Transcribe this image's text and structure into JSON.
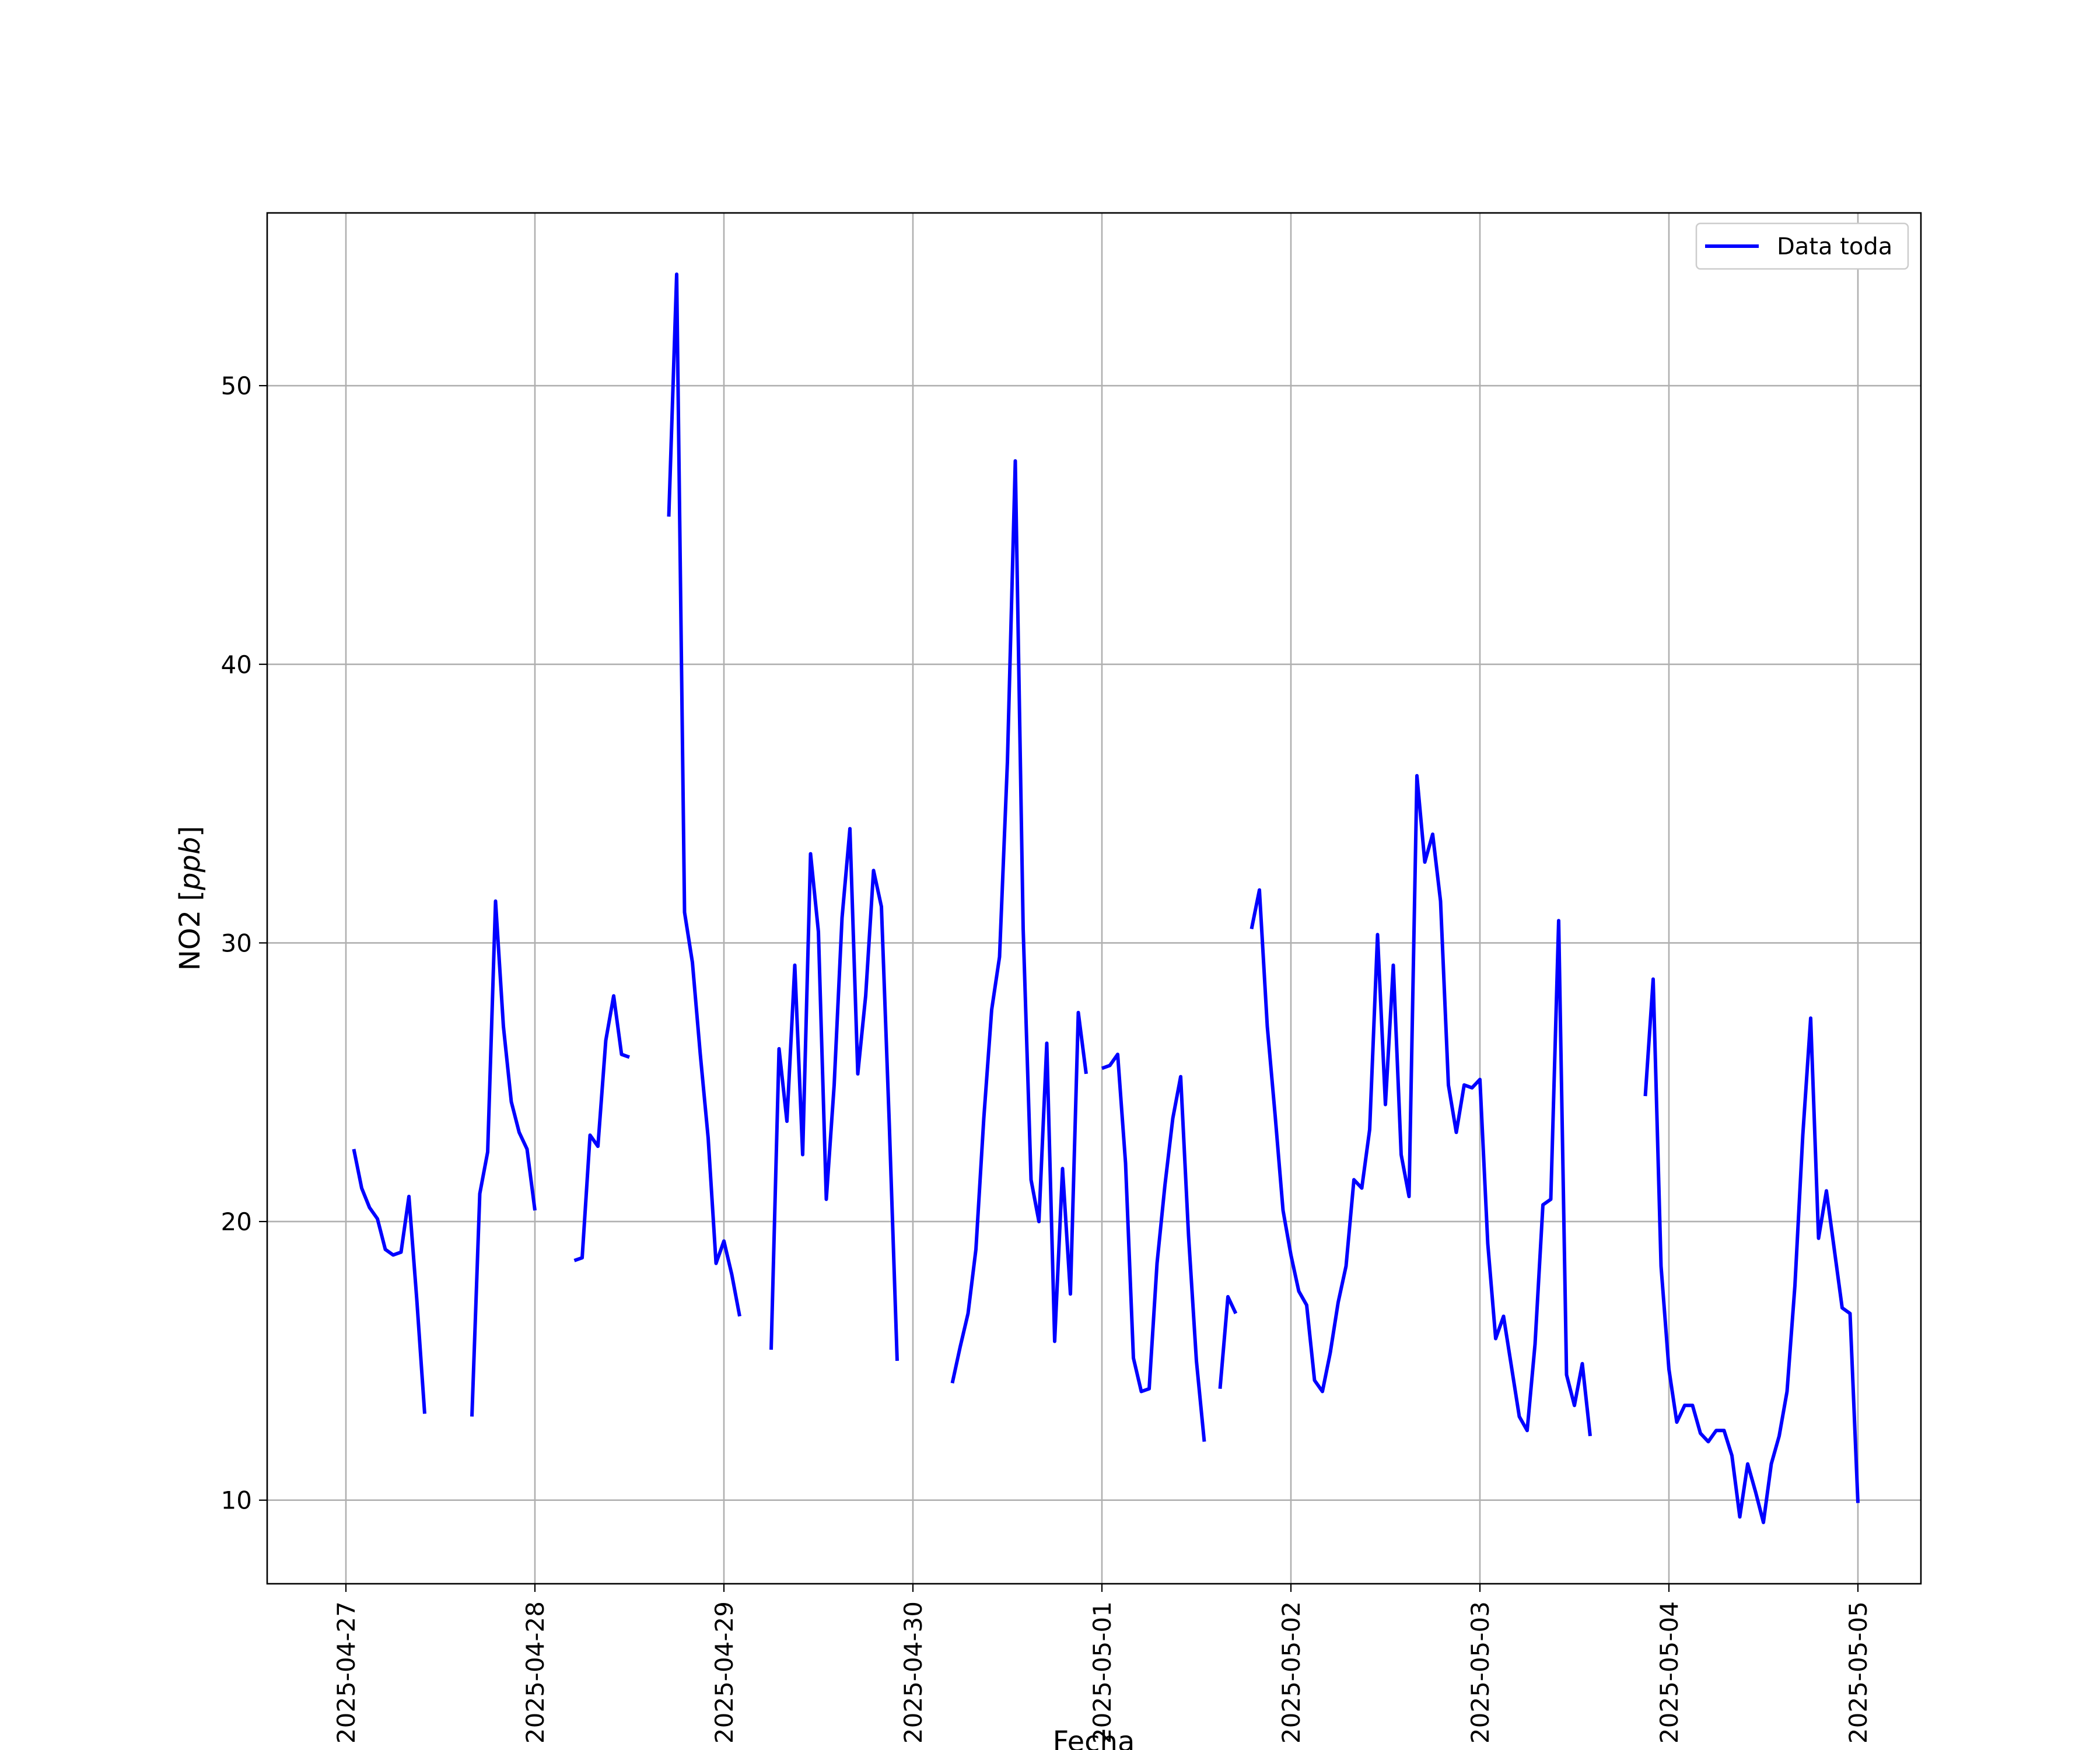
{
  "chart_data": {
    "type": "line",
    "title": "",
    "xlabel": "Fecha",
    "ylabel": "NO2 [ppb]",
    "ylabel_main": "NO2 [",
    "ylabel_unit": "ppb",
    "ylabel_close": "]",
    "x_ticks": [
      "2025-04-27",
      "2025-04-28",
      "2025-04-29",
      "2025-04-30",
      "2025-05-01",
      "2025-05-02",
      "2025-05-03",
      "2025-05-04",
      "2025-05-05"
    ],
    "y_ticks": [
      10,
      20,
      30,
      40,
      50
    ],
    "xlim": [
      "2025-04-26T14:00",
      "2025-05-05T08:00"
    ],
    "ylim": [
      7.0,
      56.2
    ],
    "grid": true,
    "legend": {
      "position": "top-right",
      "entries": [
        "Data toda"
      ]
    },
    "series": [
      {
        "name": "Data toda",
        "color": "#0000ff",
        "segments": [
          [
            [
              "2025-04-27T01:00",
              22.6
            ],
            [
              "2025-04-27T02:00",
              21.2
            ],
            [
              "2025-04-27T03:00",
              20.5
            ],
            [
              "2025-04-27T04:00",
              20.1
            ],
            [
              "2025-04-27T05:00",
              19.0
            ],
            [
              "2025-04-27T06:00",
              18.8
            ],
            [
              "2025-04-27T07:00",
              18.9
            ],
            [
              "2025-04-27T08:00",
              20.9
            ],
            [
              "2025-04-27T09:00",
              17.2
            ],
            [
              "2025-04-27T10:00",
              13.1
            ]
          ],
          [
            [
              "2025-04-27T16:00",
              13.0
            ],
            [
              "2025-04-27T17:00",
              21.0
            ],
            [
              "2025-04-27T18:00",
              22.5
            ],
            [
              "2025-04-27T19:00",
              31.5
            ],
            [
              "2025-04-27T20:00",
              27.0
            ],
            [
              "2025-04-27T21:00",
              24.3
            ],
            [
              "2025-04-27T22:00",
              23.2
            ],
            [
              "2025-04-27T23:00",
              22.6
            ],
            [
              "2025-04-28T00:00",
              20.4
            ]
          ],
          [
            [
              "2025-04-28T05:00",
              18.6
            ],
            [
              "2025-04-28T06:00",
              18.7
            ],
            [
              "2025-04-28T07:00",
              23.1
            ],
            [
              "2025-04-28T08:00",
              22.7
            ],
            [
              "2025-04-28T09:00",
              26.5
            ],
            [
              "2025-04-28T10:00",
              28.1
            ],
            [
              "2025-04-28T11:00",
              26.0
            ],
            [
              "2025-04-28T12:00",
              25.9
            ]
          ],
          [
            [
              "2025-04-28T17:00",
              45.3
            ],
            [
              "2025-04-28T18:00",
              54.0
            ],
            [
              "2025-04-28T19:00",
              31.1
            ],
            [
              "2025-04-28T20:00",
              29.3
            ],
            [
              "2025-04-28T21:00",
              26.0
            ],
            [
              "2025-04-28T22:00",
              23.0
            ],
            [
              "2025-04-28T23:00",
              18.5
            ],
            [
              "2025-04-29T00:00",
              19.3
            ],
            [
              "2025-04-29T01:00",
              18.1
            ],
            [
              "2025-04-29T02:00",
              16.6
            ]
          ],
          [
            [
              "2025-04-29T06:00",
              15.4
            ],
            [
              "2025-04-29T07:00",
              26.2
            ],
            [
              "2025-04-29T08:00",
              23.6
            ],
            [
              "2025-04-29T09:00",
              29.2
            ],
            [
              "2025-04-29T10:00",
              22.4
            ],
            [
              "2025-04-29T11:00",
              33.2
            ],
            [
              "2025-04-29T12:00",
              30.4
            ],
            [
              "2025-04-29T13:00",
              20.8
            ],
            [
              "2025-04-29T14:00",
              24.9
            ],
            [
              "2025-04-29T15:00",
              30.9
            ],
            [
              "2025-04-29T16:00",
              34.1
            ],
            [
              "2025-04-29T17:00",
              25.3
            ],
            [
              "2025-04-29T18:00",
              28.1
            ],
            [
              "2025-04-29T19:00",
              32.6
            ],
            [
              "2025-04-29T20:00",
              31.3
            ],
            [
              "2025-04-29T21:00",
              23.5
            ],
            [
              "2025-04-29T22:00",
              15.0
            ]
          ],
          [
            [
              "2025-04-30T05:00",
              14.2
            ],
            [
              "2025-04-30T06:00",
              15.5
            ],
            [
              "2025-04-30T07:00",
              16.7
            ],
            [
              "2025-04-30T08:00",
              19.0
            ],
            [
              "2025-04-30T09:00",
              23.7
            ],
            [
              "2025-04-30T10:00",
              27.6
            ],
            [
              "2025-04-30T11:00",
              29.5
            ],
            [
              "2025-04-30T12:00",
              36.5
            ],
            [
              "2025-04-30T13:00",
              47.3
            ],
            [
              "2025-04-30T14:00",
              30.5
            ],
            [
              "2025-04-30T15:00",
              21.5
            ],
            [
              "2025-04-30T16:00",
              20.0
            ],
            [
              "2025-04-30T17:00",
              26.4
            ],
            [
              "2025-04-30T18:00",
              15.7
            ],
            [
              "2025-04-30T19:00",
              21.9
            ],
            [
              "2025-04-30T20:00",
              17.4
            ],
            [
              "2025-04-30T21:00",
              27.5
            ],
            [
              "2025-04-30T22:00",
              25.3
            ]
          ],
          [
            [
              "2025-05-01T00:00",
              25.5
            ],
            [
              "2025-05-01T01:00",
              25.6
            ],
            [
              "2025-05-01T02:00",
              26.0
            ],
            [
              "2025-05-01T03:00",
              22.1
            ],
            [
              "2025-05-01T04:00",
              15.1
            ],
            [
              "2025-05-01T05:00",
              13.9
            ],
            [
              "2025-05-01T06:00",
              14.0
            ],
            [
              "2025-05-01T07:00",
              18.5
            ],
            [
              "2025-05-01T08:00",
              21.3
            ],
            [
              "2025-05-01T09:00",
              23.7
            ],
            [
              "2025-05-01T10:00",
              25.2
            ],
            [
              "2025-05-01T11:00",
              19.5
            ],
            [
              "2025-05-01T12:00",
              15.0
            ],
            [
              "2025-05-01T13:00",
              12.1
            ]
          ],
          [
            [
              "2025-05-01T15:00",
              14.0
            ],
            [
              "2025-05-01T16:00",
              17.3
            ],
            [
              "2025-05-01T17:00",
              16.7
            ]
          ],
          [
            [
              "2025-05-01T19:00",
              30.5
            ],
            [
              "2025-05-01T20:00",
              31.9
            ],
            [
              "2025-05-01T21:00",
              27.0
            ],
            [
              "2025-05-01T22:00",
              23.8
            ],
            [
              "2025-05-01T23:00",
              20.4
            ],
            [
              "2025-05-02T00:00",
              18.8
            ],
            [
              "2025-05-02T01:00",
              17.5
            ],
            [
              "2025-05-02T02:00",
              17.0
            ],
            [
              "2025-05-02T03:00",
              14.3
            ],
            [
              "2025-05-02T04:00",
              13.9
            ],
            [
              "2025-05-02T05:00",
              15.3
            ],
            [
              "2025-05-02T06:00",
              17.1
            ],
            [
              "2025-05-02T07:00",
              18.4
            ],
            [
              "2025-05-02T08:00",
              21.5
            ],
            [
              "2025-05-02T09:00",
              21.2
            ],
            [
              "2025-05-02T10:00",
              23.3
            ],
            [
              "2025-05-02T11:00",
              30.3
            ],
            [
              "2025-05-02T12:00",
              24.2
            ],
            [
              "2025-05-02T13:00",
              29.2
            ],
            [
              "2025-05-02T14:00",
              22.4
            ],
            [
              "2025-05-02T15:00",
              20.9
            ],
            [
              "2025-05-02T16:00",
              36.0
            ],
            [
              "2025-05-02T17:00",
              32.9
            ],
            [
              "2025-05-02T18:00",
              33.9
            ],
            [
              "2025-05-02T19:00",
              31.5
            ],
            [
              "2025-05-02T20:00",
              24.9
            ],
            [
              "2025-05-02T21:00",
              23.2
            ],
            [
              "2025-05-02T22:00",
              24.9
            ],
            [
              "2025-05-02T23:00",
              24.8
            ],
            [
              "2025-05-03T00:00",
              25.1
            ],
            [
              "2025-05-03T01:00",
              19.2
            ],
            [
              "2025-05-03T02:00",
              15.8
            ],
            [
              "2025-05-03T03:00",
              16.6
            ],
            [
              "2025-05-03T04:00",
              14.8
            ],
            [
              "2025-05-03T05:00",
              13.0
            ],
            [
              "2025-05-03T06:00",
              12.5
            ],
            [
              "2025-05-03T07:00",
              15.6
            ],
            [
              "2025-05-03T08:00",
              20.6
            ],
            [
              "2025-05-03T09:00",
              20.8
            ],
            [
              "2025-05-03T10:00",
              30.8
            ],
            [
              "2025-05-03T11:00",
              14.5
            ],
            [
              "2025-05-03T12:00",
              13.4
            ],
            [
              "2025-05-03T13:00",
              14.9
            ],
            [
              "2025-05-03T14:00",
              12.3
            ]
          ],
          [
            [
              "2025-05-03T21:00",
              24.5
            ],
            [
              "2025-05-03T22:00",
              28.7
            ],
            [
              "2025-05-03T23:00",
              18.4
            ],
            [
              "2025-05-04T00:00",
              14.7
            ],
            [
              "2025-05-04T01:00",
              12.8
            ],
            [
              "2025-05-04T02:00",
              13.4
            ],
            [
              "2025-05-04T03:00",
              13.4
            ],
            [
              "2025-05-04T04:00",
              12.4
            ],
            [
              "2025-05-04T05:00",
              12.1
            ],
            [
              "2025-05-04T06:00",
              12.5
            ],
            [
              "2025-05-04T07:00",
              12.5
            ],
            [
              "2025-05-04T08:00",
              11.6
            ],
            [
              "2025-05-04T09:00",
              9.4
            ],
            [
              "2025-05-04T10:00",
              11.3
            ],
            [
              "2025-05-04T11:00",
              10.3
            ],
            [
              "2025-05-04T12:00",
              9.2
            ],
            [
              "2025-05-04T13:00",
              11.3
            ],
            [
              "2025-05-04T14:00",
              12.3
            ],
            [
              "2025-05-04T15:00",
              13.9
            ],
            [
              "2025-05-04T16:00",
              17.7
            ],
            [
              "2025-05-04T17:00",
              23.1
            ],
            [
              "2025-05-04T18:00",
              27.3
            ],
            [
              "2025-05-04T19:00",
              19.4
            ],
            [
              "2025-05-04T20:00",
              21.1
            ],
            [
              "2025-05-04T21:00",
              19.0
            ],
            [
              "2025-05-04T22:00",
              16.9
            ],
            [
              "2025-05-04T23:00",
              16.7
            ],
            [
              "2025-05-05T00:00",
              9.9
            ]
          ]
        ]
      }
    ]
  }
}
